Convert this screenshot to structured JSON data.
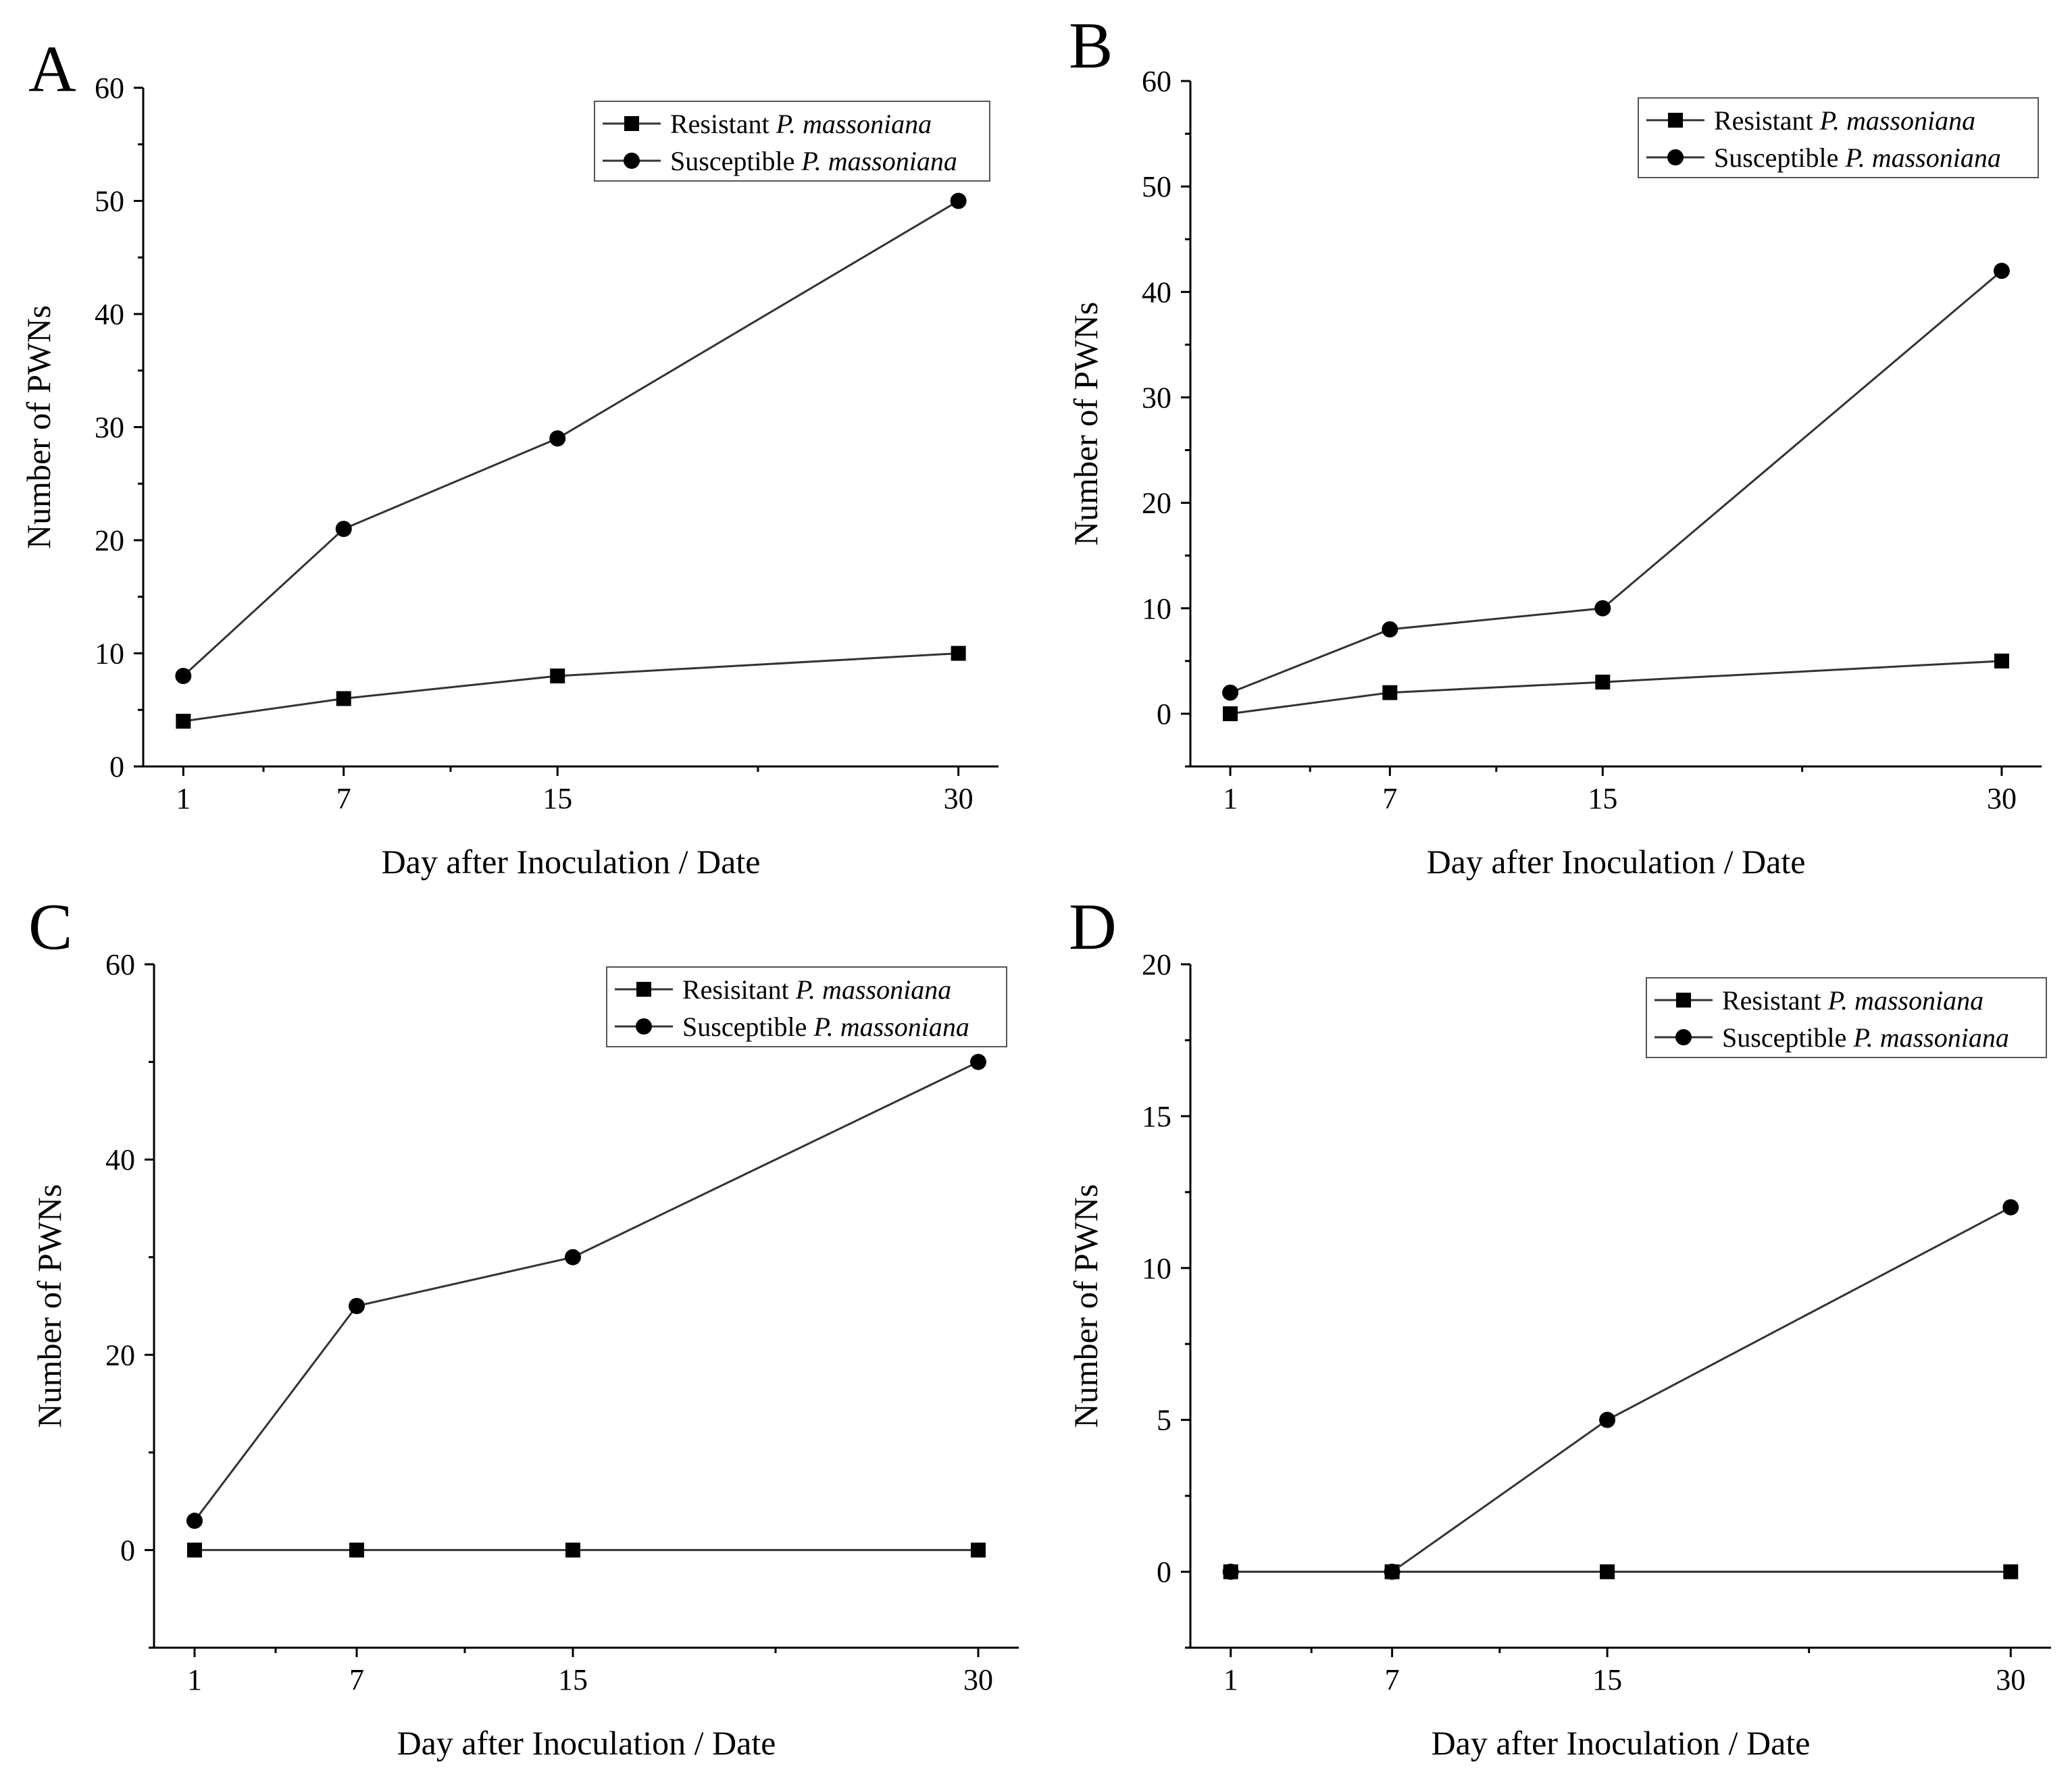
{
  "figure": {
    "panel_count": 4
  },
  "chart_data": [
    {
      "panel": "A",
      "type": "line",
      "x": [
        1,
        7,
        15,
        30
      ],
      "xticks": [
        1,
        7,
        15,
        30
      ],
      "xlim": [
        -0.5,
        31.5
      ],
      "ylim": [
        0,
        60
      ],
      "yticks": [
        0,
        10,
        20,
        30,
        40,
        50,
        60
      ],
      "xlabel": "Day after Inoculation / Date",
      "ylabel": "Number of PWNs",
      "legend": "top-right",
      "series": [
        {
          "name": "Resistant",
          "species": "P. massoniana",
          "marker": "square",
          "values": [
            4,
            6,
            8,
            10
          ]
        },
        {
          "name": "Susceptible",
          "species": "P. massoniana",
          "marker": "circle",
          "values": [
            8,
            21,
            29,
            50
          ]
        }
      ]
    },
    {
      "panel": "B",
      "type": "line",
      "x": [
        1,
        7,
        15,
        30
      ],
      "xticks": [
        1,
        7,
        15,
        30
      ],
      "xlim": [
        -0.5,
        31.5
      ],
      "ylim": [
        -5,
        60
      ],
      "yticks": [
        0,
        10,
        20,
        30,
        40,
        50,
        60
      ],
      "xlabel": "Day after Inoculation / Date",
      "ylabel": "Number of PWNs",
      "legend": "top-right",
      "series": [
        {
          "name": "Resistant",
          "species": "P. massoniana",
          "marker": "square",
          "values": [
            0,
            2,
            3,
            5
          ]
        },
        {
          "name": "Susceptible",
          "species": "P. massoniana",
          "marker": "circle",
          "values": [
            2,
            8,
            10,
            42
          ]
        }
      ]
    },
    {
      "panel": "C",
      "type": "line",
      "x": [
        1,
        7,
        15,
        30
      ],
      "xticks": [
        1,
        7,
        15,
        30
      ],
      "xlim": [
        -0.5,
        31.5
      ],
      "ylim": [
        -10,
        60
      ],
      "yticks": [
        0,
        20,
        40,
        60
      ],
      "xlabel": "Day after Inoculation / Date",
      "ylabel": "Number of PWNs",
      "legend": "top-right",
      "series": [
        {
          "name": "Resisitant",
          "species": "P. massoniana",
          "marker": "square",
          "values": [
            0,
            0,
            0,
            0
          ]
        },
        {
          "name": "Susceptible",
          "species": "P. massoniana",
          "marker": "circle",
          "values": [
            3,
            25,
            30,
            50
          ]
        }
      ]
    },
    {
      "panel": "D",
      "type": "line",
      "x": [
        1,
        7,
        15,
        30
      ],
      "xticks": [
        1,
        7,
        15,
        30
      ],
      "xlim": [
        -0.5,
        31.5
      ],
      "ylim": [
        -2.5,
        20
      ],
      "yticks": [
        0,
        5,
        10,
        15,
        20
      ],
      "xlabel": "Day after Inoculation / Date",
      "ylabel": "Number of PWNs",
      "legend": "top-right",
      "series": [
        {
          "name": "Resistant",
          "species": "P. massoniana",
          "marker": "square",
          "values": [
            0,
            0,
            0,
            0
          ]
        },
        {
          "name": "Susceptible",
          "species": "P. massoniana",
          "marker": "circle",
          "values": [
            0,
            0,
            5,
            12
          ]
        }
      ]
    }
  ]
}
